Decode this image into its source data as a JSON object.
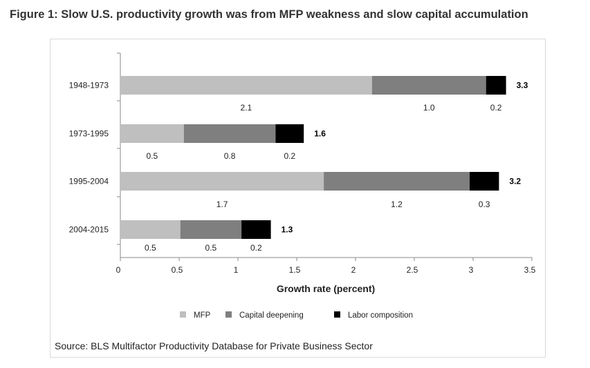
{
  "figure": {
    "title": "Figure 1: Slow U.S. productivity growth was from MFP weakness and slow capital accumulation",
    "source": "Source: BLS Multifactor Productivity Database for Private Business Sector"
  },
  "chart_data": {
    "type": "bar",
    "orientation": "horizontal",
    "stacked": true,
    "categories": [
      "1948-1973",
      "1973-1995",
      "1995-2004",
      "2004-2015"
    ],
    "series": [
      {
        "name": "MFP",
        "color": "#bfbfbf",
        "values": [
          2.14,
          0.54,
          1.73,
          0.51
        ],
        "labels": [
          "2.1",
          "0.5",
          "1.7",
          "0.5"
        ]
      },
      {
        "name": "Capital deepening",
        "color": "#7f7f7f",
        "values": [
          0.97,
          0.78,
          1.24,
          0.52
        ],
        "labels": [
          "1.0",
          "0.8",
          "1.2",
          "0.5"
        ]
      },
      {
        "name": "Labor composition",
        "color": "#000000",
        "values": [
          0.17,
          0.24,
          0.25,
          0.25
        ],
        "labels": [
          "0.2",
          "0.2",
          "0.3",
          "0.2"
        ]
      }
    ],
    "totals": [
      "3.3",
      "1.6",
      "3.2",
      "1.3"
    ],
    "xlabel": "Growth rate (percent)",
    "ylabel": "",
    "xlim": [
      0,
      3.5
    ],
    "xticks": [
      0,
      0.5,
      1,
      1.5,
      2,
      2.5,
      3,
      3.5
    ],
    "xtick_labels": [
      "0",
      "0.5",
      "1",
      "1.5",
      "2",
      "2.5",
      "3",
      "3.5"
    ],
    "grid": false,
    "legend_position": "bottom"
  }
}
